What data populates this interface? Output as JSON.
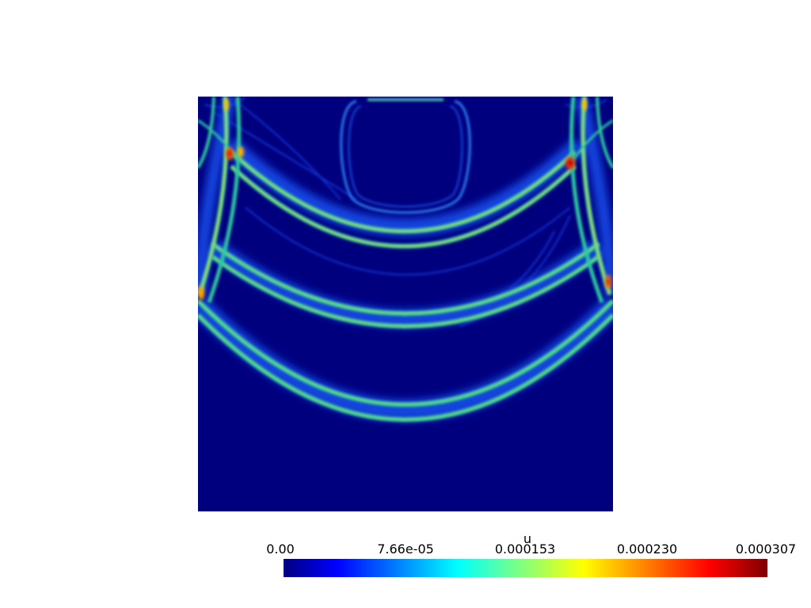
{
  "field_name": "u",
  "colorbar": {
    "title": "u",
    "ticks": [
      "0.00",
      "7.66e-05",
      "0.000153",
      "0.000230",
      "0.000307"
    ],
    "range": [
      0.0,
      0.000307
    ],
    "colormap": "jet",
    "stops": [
      "#00007f",
      "#0000ff",
      "#00ffff",
      "#ffff00",
      "#ff0000",
      "#7f0000"
    ]
  },
  "plot": {
    "background": "#00007f",
    "wave_core": "#4ad88a",
    "wave_halo": "#1e5cff",
    "hotspot": "#ff1a00"
  }
}
